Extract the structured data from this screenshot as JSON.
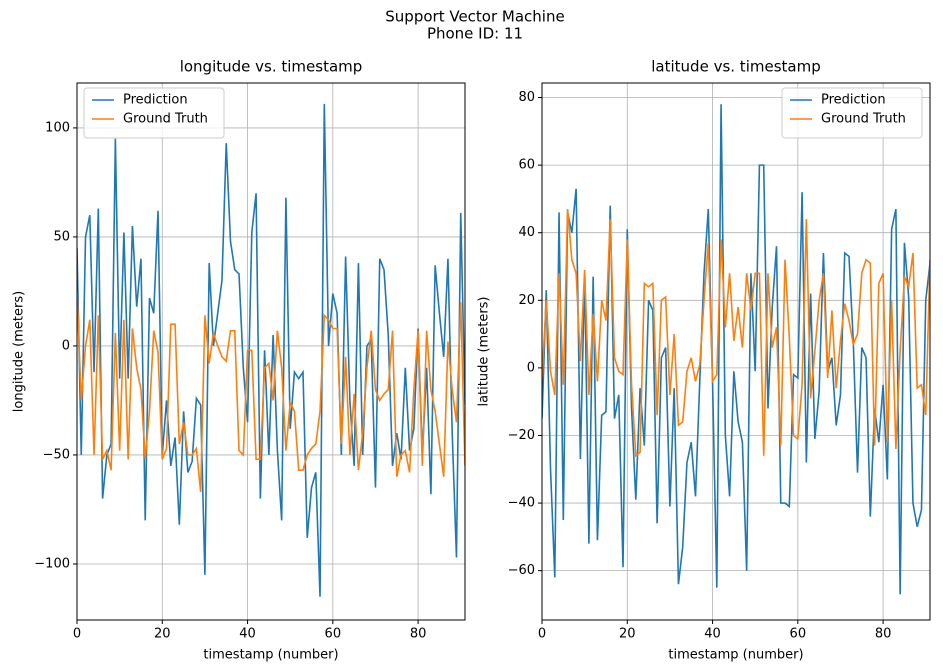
{
  "figure": {
    "title": "Support Vector Machine",
    "subtitle": "Phone ID: 11"
  },
  "chart_data": [
    {
      "type": "line",
      "title": "longitude vs. timestamp",
      "x_label": "timestamp (number)",
      "y_label": "longitude (meters)",
      "legend": "upper left",
      "grid": true,
      "xlim": [
        0,
        91
      ],
      "ylim": [
        -125.7,
        120.6
      ],
      "xticks": [
        0,
        20,
        40,
        60,
        80
      ],
      "yticks": [
        {
          "value": -100,
          "label": "−100"
        },
        {
          "value": -50,
          "label": "−50"
        },
        0,
        50,
        100
      ],
      "x": [
        0,
        1,
        2,
        3,
        4,
        5,
        6,
        7,
        8,
        9,
        10,
        11,
        12,
        13,
        14,
        15,
        16,
        17,
        18,
        19,
        20,
        21,
        22,
        23,
        24,
        25,
        26,
        27,
        28,
        29,
        30,
        31,
        32,
        33,
        34,
        35,
        36,
        37,
        38,
        39,
        40,
        41,
        42,
        43,
        44,
        45,
        46,
        47,
        48,
        49,
        50,
        51,
        52,
        53,
        54,
        55,
        56,
        57,
        58,
        59,
        60,
        61,
        62,
        63,
        64,
        65,
        66,
        67,
        68,
        69,
        70,
        71,
        72,
        73,
        74,
        75,
        76,
        77,
        78,
        79,
        80,
        81,
        82,
        83,
        84,
        85,
        86,
        87,
        88,
        89,
        90,
        91
      ],
      "series": [
        {
          "name": "Prediction",
          "color": "#1f77b4",
          "values": [
            45,
            -50,
            50,
            60,
            -12,
            63,
            -70,
            -50,
            -45,
            95,
            -15,
            52,
            -15,
            55,
            18,
            40,
            -80,
            22,
            15,
            62,
            -50,
            -25,
            -55,
            -42,
            -82,
            -30,
            -58,
            -53,
            -24,
            -27,
            -105,
            38,
            0,
            15,
            30,
            93,
            48,
            35,
            33,
            -10,
            -35,
            52,
            70,
            -70,
            -2,
            -50,
            5,
            -48,
            -80,
            68,
            -38,
            -12,
            -15,
            -12,
            -88,
            -65,
            -58,
            -115,
            111,
            0,
            24,
            15,
            -50,
            41,
            -25,
            -55,
            38,
            -50,
            0,
            3,
            -65,
            40,
            35,
            5,
            -55,
            -40,
            -52,
            -10,
            -48,
            -38,
            8,
            -50,
            -10,
            -68,
            37,
            15,
            -5,
            40,
            -40,
            -97,
            61,
            -27
          ]
        },
        {
          "name": "Ground Truth",
          "color": "#ff7f0e",
          "values": [
            25,
            -25,
            0,
            12,
            -50,
            14,
            -52,
            -48,
            -57,
            6,
            -48,
            12,
            -52,
            8,
            -10,
            -20,
            -52,
            -30,
            7,
            -3,
            -52,
            -47,
            10,
            10,
            -45,
            -35,
            -50,
            -50,
            -47,
            -67,
            14,
            -8,
            6,
            0,
            -5,
            -7,
            7,
            7,
            -48,
            -50,
            -2,
            -2,
            -52,
            -52,
            -10,
            -8,
            -25,
            7,
            -10,
            -48,
            -26,
            -30,
            -57,
            -57,
            -50,
            -47,
            -45,
            -30,
            14,
            12,
            8,
            8,
            -45,
            -5,
            -50,
            -22,
            -57,
            -40,
            -10,
            7,
            -20,
            -25,
            -22,
            -20,
            7,
            -60,
            -50,
            -48,
            -58,
            -20,
            7,
            -55,
            7,
            -20,
            -30,
            -45,
            -60,
            2,
            -20,
            -35,
            20,
            -55
          ]
        }
      ]
    },
    {
      "type": "line",
      "title": "latitude vs. timestamp",
      "x_label": "timestamp (number)",
      "y_label": "latitude (meters)",
      "legend": "upper right",
      "grid": true,
      "xlim": [
        0,
        91
      ],
      "ylim": [
        -74.6,
        84.3
      ],
      "xticks": [
        0,
        20,
        40,
        60,
        80
      ],
      "yticks": [
        {
          "value": -60,
          "label": "−60"
        },
        {
          "value": -40,
          "label": "−40"
        },
        {
          "value": -20,
          "label": "−20"
        },
        0,
        20,
        40,
        60,
        80
      ],
      "x": [
        0,
        1,
        2,
        3,
        4,
        5,
        6,
        7,
        8,
        9,
        10,
        11,
        12,
        13,
        14,
        15,
        16,
        17,
        18,
        19,
        20,
        21,
        22,
        23,
        24,
        25,
        26,
        27,
        28,
        29,
        30,
        31,
        32,
        33,
        34,
        35,
        36,
        37,
        38,
        39,
        40,
        41,
        42,
        43,
        44,
        45,
        46,
        47,
        48,
        49,
        50,
        51,
        52,
        53,
        54,
        55,
        56,
        57,
        58,
        59,
        60,
        61,
        62,
        63,
        64,
        65,
        66,
        67,
        68,
        69,
        70,
        71,
        72,
        73,
        74,
        75,
        76,
        77,
        78,
        79,
        80,
        81,
        82,
        83,
        84,
        85,
        86,
        87,
        88,
        89,
        90,
        91
      ],
      "series": [
        {
          "name": "Prediction",
          "color": "#1f77b4",
          "values": [
            -15,
            23,
            -30,
            -62,
            46,
            -45,
            46,
            40,
            53,
            -27,
            28,
            -52,
            27,
            -51,
            -14,
            -13,
            48,
            -15,
            -8,
            -59,
            41,
            -12,
            -39,
            -6,
            -23,
            20,
            17,
            -46,
            3,
            6,
            -41,
            -6,
            -64,
            -53,
            -28,
            -22,
            -38,
            -4,
            28,
            47,
            -4,
            -65,
            78,
            -20,
            -38,
            -1,
            -16,
            -22,
            -60,
            28,
            -1,
            60,
            60,
            -12,
            18,
            36,
            -40,
            -40,
            -41,
            -2,
            -3,
            52,
            -28,
            22,
            -21,
            -7,
            34,
            -1,
            3,
            -17,
            -8,
            34,
            33,
            8,
            -31,
            6,
            3,
            -44,
            -12,
            -22,
            -5,
            -33,
            41,
            47,
            -67,
            37,
            21,
            -40,
            -47,
            -42,
            20,
            31
          ]
        },
        {
          "name": "Ground Truth",
          "color": "#ff7f0e",
          "values": [
            -3,
            20,
            -1,
            -8,
            28,
            -5,
            47,
            32,
            28,
            2,
            29,
            -8,
            16,
            -4,
            20,
            14,
            44,
            3,
            -1,
            -2,
            38,
            -5,
            -26,
            -25,
            25,
            24,
            25,
            -14,
            20,
            21,
            -8,
            10,
            -17,
            -16,
            -1,
            3,
            -4,
            1,
            20,
            37,
            -4,
            -2,
            38,
            12,
            28,
            8,
            18,
            6,
            28,
            17,
            28,
            28,
            -26,
            28,
            6,
            12,
            -23,
            32,
            9,
            -20,
            -21,
            -5,
            44,
            -9,
            5,
            20,
            28,
            -3,
            17,
            -6,
            8,
            19,
            14,
            7,
            10,
            28,
            32,
            31,
            -23,
            25,
            28,
            -22,
            20,
            -24,
            5,
            27,
            24,
            34,
            -6,
            -5,
            -14,
            32
          ]
        }
      ]
    }
  ]
}
